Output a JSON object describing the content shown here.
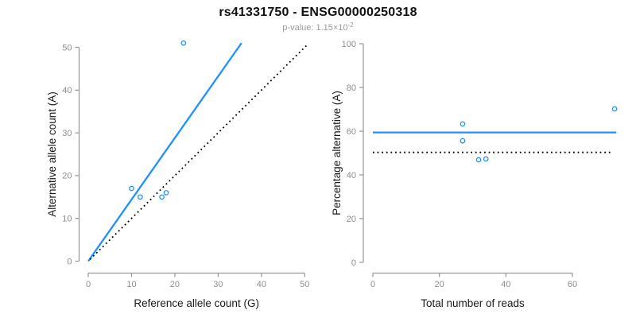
{
  "header": {
    "title": "rs41331750 - ENSG00000250318",
    "p_value_label": "p-value: ",
    "p_value_base": "1.15×10",
    "p_value_exponent": "-2"
  },
  "chart_data": [
    {
      "type": "scatter",
      "panel": "left",
      "xlabel": "Reference allele count (G)",
      "ylabel": "Alternative allele count (A)",
      "xlim": [
        0,
        52
      ],
      "ylim": [
        0,
        52
      ],
      "xticks": [
        0,
        10,
        20,
        30,
        40,
        50
      ],
      "yticks": [
        0,
        10,
        20,
        30,
        40,
        50
      ],
      "grid": false,
      "legend": "none",
      "points": [
        [
          10,
          17
        ],
        [
          12,
          15
        ],
        [
          17,
          15
        ],
        [
          18,
          16
        ],
        [
          22,
          51
        ]
      ],
      "lines": [
        {
          "name": "fitted-ratio-line",
          "style": "solid",
          "color": "#1E90FF",
          "from": [
            0,
            0
          ],
          "to": [
            35.4,
            51.0
          ]
        },
        {
          "name": "identity-line",
          "style": "dotted",
          "color": "#000000",
          "from": [
            0.4,
            0.4
          ],
          "to": [
            50.7,
            50.7
          ]
        }
      ]
    },
    {
      "type": "scatter",
      "panel": "right",
      "xlabel": "Total number of reads",
      "ylabel": "Percentage alternative (A)",
      "xlim": [
        0,
        73
      ],
      "ylim": [
        0,
        100
      ],
      "xticks": [
        0,
        20,
        40,
        60
      ],
      "yticks": [
        0,
        20,
        40,
        60,
        80,
        100
      ],
      "grid": false,
      "legend": "none",
      "points": [
        [
          27,
          63.3
        ],
        [
          27,
          55.6
        ],
        [
          31.8,
          46.9
        ],
        [
          34,
          47.3
        ],
        [
          72.7,
          70.2
        ]
      ],
      "lines": [
        {
          "name": "mean-percentage-line",
          "style": "solid",
          "color": "#1E90FF",
          "from": [
            0,
            59.4
          ],
          "to": [
            73.2,
            59.4
          ]
        },
        {
          "name": "fifty-percent-line",
          "style": "dotted",
          "color": "#000000",
          "from": [
            0,
            50.3
          ],
          "to": [
            72,
            50.3
          ]
        }
      ]
    }
  ],
  "style": {
    "accent_blue": "#1E90FF",
    "axis_color": "#969696",
    "tick_label_color": "#8e8e8e",
    "axis_title_color": "#1a1a1a",
    "title_color": "#111111",
    "subtitle_color": "#9a9a9a",
    "background": "#ffffff"
  }
}
